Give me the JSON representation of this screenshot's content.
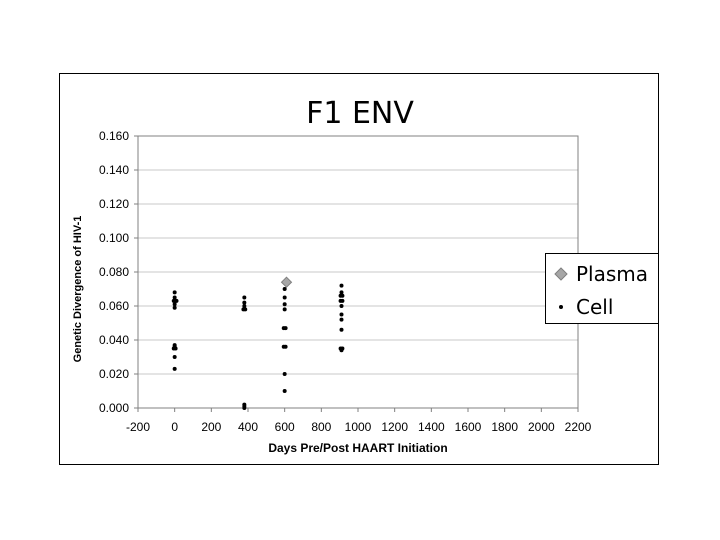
{
  "colors": {
    "plasma": "#a6a6a6",
    "cell": "#000000",
    "grid": "#c8c8c8",
    "axis": "#808080"
  },
  "legend": {
    "items": [
      {
        "label": "Plasma",
        "icon": "diamond-marker"
      },
      {
        "label": "Cell",
        "icon": "dot-marker"
      }
    ]
  },
  "chart_data": {
    "type": "scatter",
    "title": "F1  ENV",
    "xlabel": "Days   Pre/Post   HAART   Initiation",
    "ylabel": "Genetic   Divergence   of   HIV-1",
    "xlim": [
      -200,
      2200
    ],
    "ylim": [
      0,
      0.16
    ],
    "xticks": [
      "-200",
      "0",
      "200",
      "400",
      "600",
      "800",
      "1000",
      "1200",
      "1400",
      "1600",
      "1800",
      "2000",
      "2200"
    ],
    "yticks": [
      "0.000",
      "0.020",
      "0.040",
      "0.060",
      "0.080",
      "0.100",
      "0.120",
      "0.140",
      "0.160"
    ],
    "grid": "horizontal",
    "legend_position": "right",
    "series": [
      {
        "name": "Plasma",
        "marker": "diamond",
        "points": [
          [
            610,
            0.074
          ]
        ]
      },
      {
        "name": "Cell",
        "marker": "dot",
        "points": [
          [
            0,
            0.068
          ],
          [
            0,
            0.065
          ],
          [
            -5,
            0.063
          ],
          [
            5,
            0.063
          ],
          [
            10,
            0.063
          ],
          [
            0,
            0.061
          ],
          [
            0,
            0.059
          ],
          [
            0,
            0.037
          ],
          [
            0,
            0.036
          ],
          [
            -5,
            0.035
          ],
          [
            5,
            0.035
          ],
          [
            0,
            0.03
          ],
          [
            0,
            0.023
          ],
          [
            380,
            0.065
          ],
          [
            380,
            0.062
          ],
          [
            380,
            0.06
          ],
          [
            375,
            0.058
          ],
          [
            385,
            0.058
          ],
          [
            380,
            0.002
          ],
          [
            380,
            0.001
          ],
          [
            380,
            0.0
          ],
          [
            600,
            0.07
          ],
          [
            600,
            0.065
          ],
          [
            600,
            0.061
          ],
          [
            600,
            0.058
          ],
          [
            595,
            0.047
          ],
          [
            605,
            0.047
          ],
          [
            595,
            0.036
          ],
          [
            605,
            0.036
          ],
          [
            600,
            0.02
          ],
          [
            600,
            0.01
          ],
          [
            910,
            0.072
          ],
          [
            910,
            0.068
          ],
          [
            905,
            0.066
          ],
          [
            915,
            0.066
          ],
          [
            905,
            0.063
          ],
          [
            915,
            0.063
          ],
          [
            910,
            0.06
          ],
          [
            910,
            0.055
          ],
          [
            910,
            0.052
          ],
          [
            910,
            0.046
          ],
          [
            905,
            0.035
          ],
          [
            910,
            0.034
          ],
          [
            915,
            0.035
          ]
        ]
      }
    ]
  }
}
